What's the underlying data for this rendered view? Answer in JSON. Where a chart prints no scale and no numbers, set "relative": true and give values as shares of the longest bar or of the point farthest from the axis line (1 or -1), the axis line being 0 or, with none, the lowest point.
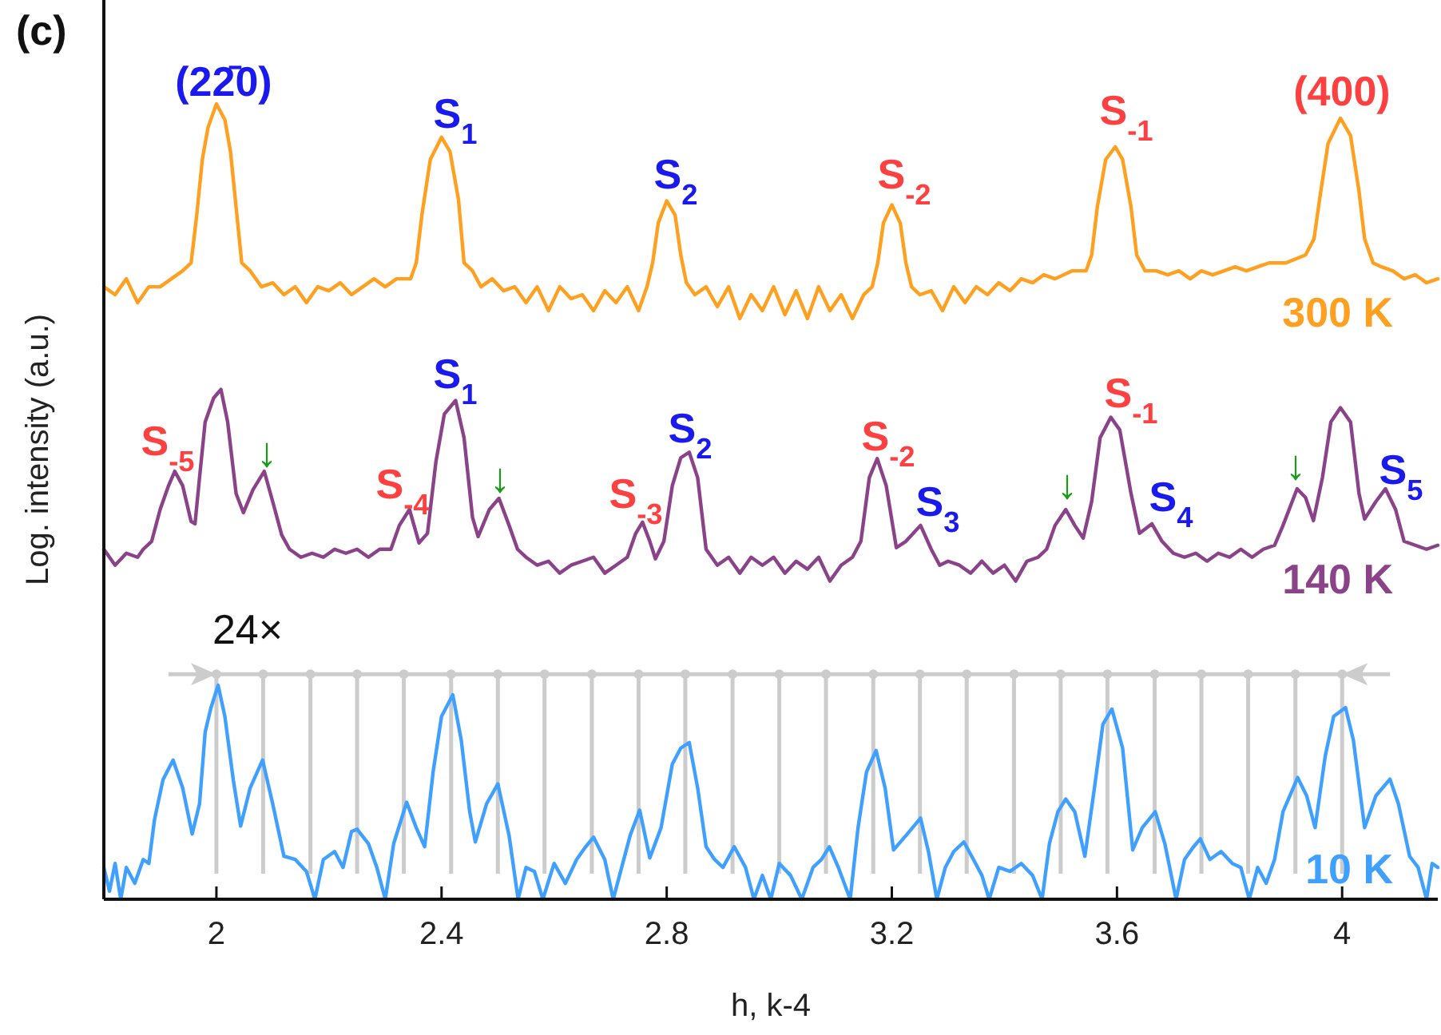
{
  "chart_data": {
    "type": "line",
    "relative": true,
    "xlabel": "h, k-4",
    "ylabel": "Log. intensity (a.u.)",
    "xlim": [
      1.8,
      4.17
    ],
    "xticks": [
      2,
      2.4,
      2.8,
      3.2,
      3.6,
      4
    ],
    "tick_labels": "x",
    "grid": false,
    "marker": "none",
    "line_style": "solid",
    "series": [
      {
        "name": "300 K",
        "color": "#ffa020",
        "x": [
          1.8,
          1.82,
          1.84,
          1.86,
          1.88,
          1.9,
          1.92,
          1.94,
          1.955,
          1.965,
          1.975,
          1.985,
          2.0,
          2.015,
          2.025,
          2.035,
          2.045,
          2.06,
          2.08,
          2.1,
          2.12,
          2.14,
          2.16,
          2.18,
          2.2,
          2.22,
          2.24,
          2.26,
          2.28,
          2.3,
          2.32,
          2.345,
          2.355,
          2.365,
          2.38,
          2.4,
          2.415,
          2.43,
          2.44,
          2.455,
          2.47,
          2.49,
          2.51,
          2.53,
          2.55,
          2.57,
          2.59,
          2.61,
          2.63,
          2.65,
          2.67,
          2.69,
          2.71,
          2.73,
          2.75,
          2.765,
          2.775,
          2.785,
          2.8,
          2.815,
          2.825,
          2.835,
          2.85,
          2.87,
          2.89,
          2.91,
          2.93,
          2.95,
          2.97,
          2.99,
          3.01,
          3.03,
          3.05,
          3.07,
          3.09,
          3.11,
          3.13,
          3.15,
          3.165,
          3.175,
          3.185,
          3.2,
          3.215,
          3.225,
          3.235,
          3.25,
          3.27,
          3.29,
          3.31,
          3.33,
          3.35,
          3.37,
          3.39,
          3.41,
          3.43,
          3.45,
          3.47,
          3.49,
          3.52,
          3.545,
          3.555,
          3.565,
          3.58,
          3.597,
          3.61,
          3.625,
          3.635,
          3.65,
          3.67,
          3.69,
          3.71,
          3.73,
          3.75,
          3.77,
          3.79,
          3.81,
          3.83,
          3.85,
          3.87,
          3.9,
          3.935,
          3.95,
          3.96,
          3.975,
          3.997,
          4.015,
          4.03,
          4.04,
          4.055,
          4.07,
          4.09,
          4.11,
          4.13,
          4.15,
          4.17
        ],
        "values": [
          0.77,
          0.76,
          0.78,
          0.75,
          0.77,
          0.77,
          0.78,
          0.79,
          0.8,
          0.86,
          0.93,
          0.97,
          1.0,
          0.98,
          0.94,
          0.87,
          0.8,
          0.79,
          0.77,
          0.775,
          0.76,
          0.77,
          0.75,
          0.77,
          0.765,
          0.775,
          0.76,
          0.77,
          0.78,
          0.77,
          0.78,
          0.78,
          0.8,
          0.86,
          0.93,
          0.958,
          0.94,
          0.88,
          0.8,
          0.79,
          0.77,
          0.78,
          0.765,
          0.77,
          0.75,
          0.77,
          0.74,
          0.77,
          0.755,
          0.76,
          0.74,
          0.765,
          0.75,
          0.77,
          0.74,
          0.77,
          0.8,
          0.85,
          0.878,
          0.86,
          0.81,
          0.775,
          0.76,
          0.77,
          0.745,
          0.77,
          0.73,
          0.76,
          0.74,
          0.77,
          0.735,
          0.765,
          0.73,
          0.77,
          0.74,
          0.76,
          0.73,
          0.76,
          0.77,
          0.8,
          0.85,
          0.873,
          0.85,
          0.8,
          0.77,
          0.76,
          0.765,
          0.74,
          0.77,
          0.75,
          0.77,
          0.76,
          0.775,
          0.765,
          0.78,
          0.775,
          0.785,
          0.78,
          0.79,
          0.79,
          0.81,
          0.87,
          0.93,
          0.946,
          0.93,
          0.87,
          0.81,
          0.79,
          0.79,
          0.785,
          0.79,
          0.78,
          0.79,
          0.785,
          0.79,
          0.795,
          0.79,
          0.795,
          0.8,
          0.8,
          0.81,
          0.83,
          0.88,
          0.95,
          0.982,
          0.96,
          0.89,
          0.83,
          0.8,
          0.795,
          0.79,
          0.78,
          0.785,
          0.775,
          0.78
        ]
      },
      {
        "name": "140 K",
        "color": "#8a4288",
        "x": [
          1.8,
          1.82,
          1.84,
          1.86,
          1.87,
          1.885,
          1.9,
          1.915,
          1.926,
          1.94,
          1.955,
          1.962,
          1.97,
          1.98,
          1.995,
          2.008,
          2.02,
          2.035,
          2.048,
          2.065,
          2.085,
          2.1,
          2.116,
          2.13,
          2.15,
          2.17,
          2.19,
          2.21,
          2.23,
          2.25,
          2.27,
          2.29,
          2.31,
          2.325,
          2.343,
          2.36,
          2.375,
          2.39,
          2.405,
          2.425,
          2.44,
          2.455,
          2.465,
          2.485,
          2.502,
          2.52,
          2.535,
          2.55,
          2.57,
          2.59,
          2.61,
          2.63,
          2.65,
          2.67,
          2.69,
          2.71,
          2.73,
          2.745,
          2.757,
          2.77,
          2.78,
          2.795,
          2.81,
          2.825,
          2.84,
          2.855,
          2.87,
          2.89,
          2.91,
          2.93,
          2.95,
          2.97,
          2.99,
          3.01,
          3.03,
          3.05,
          3.07,
          3.09,
          3.11,
          3.13,
          3.145,
          3.16,
          3.174,
          3.19,
          3.208,
          3.225,
          3.251,
          3.27,
          3.285,
          3.3,
          3.32,
          3.34,
          3.36,
          3.38,
          3.4,
          3.42,
          3.44,
          3.46,
          3.475,
          3.49,
          3.509,
          3.525,
          3.54,
          3.555,
          3.57,
          3.589,
          3.605,
          3.625,
          3.64,
          3.662,
          3.68,
          3.7,
          3.72,
          3.74,
          3.76,
          3.78,
          3.8,
          3.82,
          3.84,
          3.86,
          3.88,
          3.895,
          3.92,
          3.935,
          3.949,
          3.965,
          3.98,
          3.997,
          4.015,
          4.03,
          4.04,
          4.06,
          4.077,
          4.095,
          4.11,
          4.13,
          4.15,
          4.17
        ],
        "values": [
          0.44,
          0.42,
          0.435,
          0.43,
          0.44,
          0.45,
          0.49,
          0.52,
          0.538,
          0.52,
          0.475,
          0.472,
          0.53,
          0.6,
          0.63,
          0.641,
          0.6,
          0.51,
          0.486,
          0.515,
          0.538,
          0.5,
          0.458,
          0.44,
          0.43,
          0.435,
          0.43,
          0.44,
          0.435,
          0.44,
          0.43,
          0.44,
          0.44,
          0.47,
          0.49,
          0.448,
          0.46,
          0.55,
          0.61,
          0.627,
          0.58,
          0.48,
          0.456,
          0.49,
          0.504,
          0.47,
          0.44,
          0.43,
          0.42,
          0.425,
          0.41,
          0.42,
          0.425,
          0.43,
          0.41,
          0.42,
          0.43,
          0.46,
          0.474,
          0.45,
          0.428,
          0.45,
          0.52,
          0.555,
          0.562,
          0.53,
          0.44,
          0.42,
          0.43,
          0.41,
          0.43,
          0.42,
          0.43,
          0.41,
          0.425,
          0.415,
          0.43,
          0.4,
          0.42,
          0.43,
          0.45,
          0.53,
          0.554,
          0.52,
          0.442,
          0.45,
          0.47,
          0.44,
          0.42,
          0.425,
          0.42,
          0.41,
          0.425,
          0.41,
          0.42,
          0.4,
          0.425,
          0.43,
          0.44,
          0.47,
          0.49,
          0.47,
          0.454,
          0.5,
          0.58,
          0.606,
          0.59,
          0.51,
          0.46,
          0.472,
          0.45,
          0.435,
          0.43,
          0.435,
          0.425,
          0.435,
          0.43,
          0.44,
          0.43,
          0.44,
          0.445,
          0.47,
          0.516,
          0.505,
          0.476,
          0.53,
          0.6,
          0.618,
          0.6,
          0.51,
          0.478,
          0.5,
          0.516,
          0.49,
          0.45,
          0.445,
          0.44,
          0.445
        ]
      },
      {
        "name": "10 K",
        "color": "#3fa0ff",
        "x": [
          1.8,
          1.81,
          1.82,
          1.83,
          1.84,
          1.855,
          1.87,
          1.88,
          1.89,
          1.905,
          1.923,
          1.94,
          1.957,
          1.97,
          1.98,
          1.99,
          2.003,
          2.015,
          2.03,
          2.043,
          2.06,
          2.082,
          2.1,
          2.12,
          2.14,
          2.16,
          2.175,
          2.19,
          2.21,
          2.225,
          2.24,
          2.25,
          2.27,
          2.285,
          2.3,
          2.315,
          2.338,
          2.355,
          2.37,
          2.385,
          2.4,
          2.42,
          2.435,
          2.45,
          2.46,
          2.48,
          2.5,
          2.52,
          2.536,
          2.55,
          2.565,
          2.58,
          2.6,
          2.62,
          2.64,
          2.655,
          2.67,
          2.69,
          2.705,
          2.72,
          2.735,
          2.752,
          2.77,
          2.79,
          2.81,
          2.825,
          2.84,
          2.855,
          2.87,
          2.885,
          2.9,
          2.92,
          2.94,
          2.955,
          2.97,
          2.985,
          3.0,
          3.02,
          3.04,
          3.06,
          3.075,
          3.089,
          3.105,
          3.126,
          3.14,
          3.155,
          3.172,
          3.188,
          3.203,
          3.225,
          3.251,
          3.265,
          3.28,
          3.295,
          3.31,
          3.328,
          3.345,
          3.36,
          3.373,
          3.39,
          3.41,
          3.43,
          3.45,
          3.467,
          3.48,
          3.495,
          3.509,
          3.525,
          3.543,
          3.56,
          3.575,
          3.591,
          3.61,
          3.628,
          3.645,
          3.668,
          3.685,
          3.705,
          3.72,
          3.735,
          3.748,
          3.765,
          3.785,
          3.805,
          3.82,
          3.835,
          3.85,
          3.865,
          3.88,
          3.895,
          3.921,
          3.937,
          3.952,
          3.97,
          3.985,
          4.006,
          4.02,
          4.04,
          4.06,
          4.085,
          4.1,
          4.12,
          4.135,
          4.15,
          4.16,
          4.17
        ],
        "values": [
          0.04,
          0.01,
          0.045,
          0.0,
          0.04,
          0.02,
          0.05,
          0.045,
          0.1,
          0.15,
          0.175,
          0.14,
          0.082,
          0.12,
          0.21,
          0.24,
          0.269,
          0.23,
          0.15,
          0.092,
          0.14,
          0.175,
          0.12,
          0.054,
          0.05,
          0.035,
          0.0,
          0.05,
          0.06,
          0.04,
          0.085,
          0.088,
          0.07,
          0.04,
          0.0,
          0.07,
          0.122,
          0.09,
          0.066,
          0.16,
          0.23,
          0.257,
          0.2,
          0.11,
          0.072,
          0.12,
          0.145,
          0.08,
          0.0,
          0.04,
          0.035,
          0.0,
          0.045,
          0.02,
          0.05,
          0.065,
          0.078,
          0.05,
          0.0,
          0.04,
          0.08,
          0.112,
          0.052,
          0.09,
          0.17,
          0.19,
          0.197,
          0.14,
          0.066,
          0.05,
          0.04,
          0.066,
          0.04,
          0.0,
          0.03,
          0.0,
          0.045,
          0.03,
          0.0,
          0.04,
          0.05,
          0.066,
          0.04,
          0.0,
          0.09,
          0.16,
          0.187,
          0.14,
          0.062,
          0.08,
          0.102,
          0.06,
          0.0,
          0.04,
          0.06,
          0.072,
          0.05,
          0.03,
          0.0,
          0.04,
          0.035,
          0.045,
          0.03,
          0.0,
          0.07,
          0.11,
          0.126,
          0.11,
          0.054,
          0.14,
          0.22,
          0.239,
          0.19,
          0.062,
          0.09,
          0.11,
          0.07,
          0.0,
          0.05,
          0.065,
          0.076,
          0.05,
          0.06,
          0.045,
          0.04,
          0.0,
          0.04,
          0.02,
          0.05,
          0.11,
          0.153,
          0.13,
          0.09,
          0.18,
          0.23,
          0.241,
          0.2,
          0.09,
          0.13,
          0.151,
          0.12,
          0.054,
          0.04,
          0.0,
          0.045,
          0.04
        ]
      }
    ],
    "ref_lines": [
      {
        "axis": "x",
        "value": 2,
        "color": "#cccccc"
      },
      {
        "axis": "x",
        "value": 2.083,
        "color": "#cccccc"
      },
      {
        "axis": "x",
        "value": 2.167,
        "color": "#cccccc"
      },
      {
        "axis": "x",
        "value": 2.25,
        "color": "#cccccc"
      },
      {
        "axis": "x",
        "value": 2.333,
        "color": "#cccccc"
      },
      {
        "axis": "x",
        "value": 2.417,
        "color": "#cccccc"
      },
      {
        "axis": "x",
        "value": 2.5,
        "color": "#cccccc"
      },
      {
        "axis": "x",
        "value": 2.583,
        "color": "#cccccc"
      },
      {
        "axis": "x",
        "value": 2.667,
        "color": "#cccccc"
      },
      {
        "axis": "x",
        "value": 2.75,
        "color": "#cccccc"
      },
      {
        "axis": "x",
        "value": 2.833,
        "color": "#cccccc"
      },
      {
        "axis": "x",
        "value": 2.917,
        "color": "#cccccc"
      },
      {
        "axis": "x",
        "value": 3,
        "color": "#cccccc"
      },
      {
        "axis": "x",
        "value": 3.083,
        "color": "#cccccc"
      },
      {
        "axis": "x",
        "value": 3.167,
        "color": "#cccccc"
      },
      {
        "axis": "x",
        "value": 3.25,
        "color": "#cccccc"
      },
      {
        "axis": "x",
        "value": 3.333,
        "color": "#cccccc"
      },
      {
        "axis": "x",
        "value": 3.417,
        "color": "#cccccc"
      },
      {
        "axis": "x",
        "value": 3.5,
        "color": "#cccccc"
      },
      {
        "axis": "x",
        "value": 3.583,
        "color": "#cccccc"
      },
      {
        "axis": "x",
        "value": 3.667,
        "color": "#cccccc"
      },
      {
        "axis": "x",
        "value": 3.75,
        "color": "#cccccc"
      },
      {
        "axis": "x",
        "value": 3.833,
        "color": "#cccccc"
      },
      {
        "axis": "x",
        "value": 3.917,
        "color": "#cccccc"
      },
      {
        "axis": "x",
        "value": 4,
        "color": "#cccccc"
      },
      {
        "axis": "y",
        "value": 0.283,
        "color": "#cccccc"
      }
    ],
    "annotations": [
      "(c)",
      "(22̄0)",
      "S$_{1}$",
      "S$_{2}$",
      "S$_{-2}$",
      "S$_{-1}$",
      "(400)",
      "S$_{-5}$",
      "↓",
      "S$_{-4}$",
      "S$_{1}$",
      "↓",
      "S$_{-3}$",
      "S$_{2}$",
      "S$_{-2}$",
      "S$_{3}$",
      "↓",
      "S$_{-1}$",
      "S$_{4}$",
      "↓",
      "S$_{5}$",
      "24×"
    ]
  }
}
